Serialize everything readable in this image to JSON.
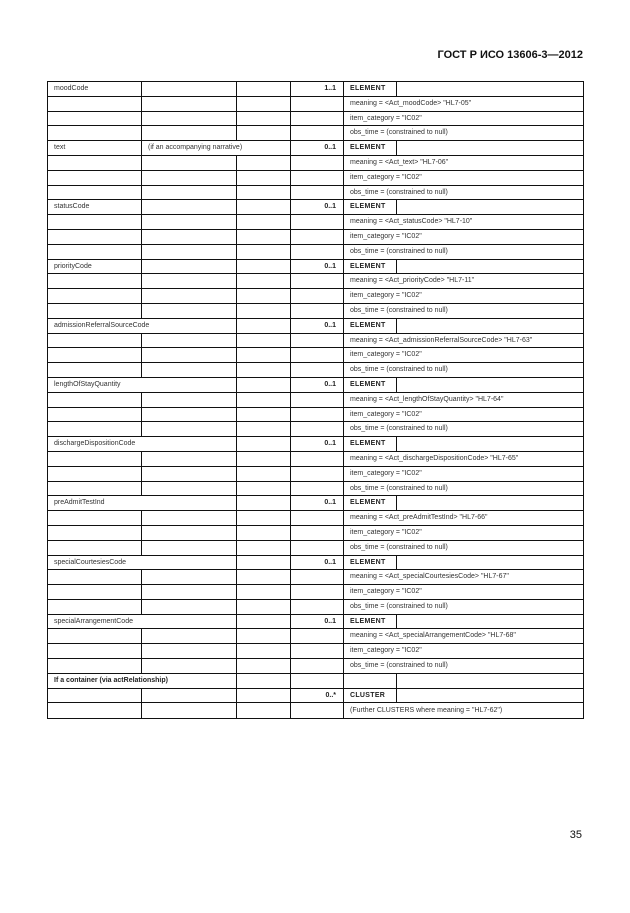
{
  "header": {
    "standard": "ГОСТ Р ИСО 13606-3—2012"
  },
  "page_number": "35",
  "groups": [
    {
      "name": "moodCode",
      "note": "",
      "card": "1..1",
      "type": "ELEMENT",
      "merge": "none",
      "rows": [
        "meaning = <Act_moodCode> \"HL7-05\"",
        "item_category = \"IC02\"",
        "obs_time = (constrained to null)"
      ]
    },
    {
      "name": "text",
      "note": "(if an accompanying narrative)",
      "card": "0..1",
      "type": "ELEMENT",
      "merge": "note",
      "rows": [
        "meaning = <Act_text> \"HL7-06\"",
        "item_category = \"IC02\"",
        "obs_time = (constrained to null)"
      ]
    },
    {
      "name": "statusCode",
      "note": "",
      "card": "0..1",
      "type": "ELEMENT",
      "merge": "none",
      "rows": [
        "meaning = <Act_statusCode> \"HL7-10\"",
        "item_category = \"IC02\"",
        "obs_time = (constrained to null)"
      ]
    },
    {
      "name": "priorityCode",
      "note": "",
      "card": "0..1",
      "type": "ELEMENT",
      "merge": "none",
      "rows": [
        "meaning = <Act_priorityCode> \"HL7-11\"",
        "item_category = \"IC02\"",
        "obs_time = (constrained to null)"
      ]
    },
    {
      "name": "admissionReferralSourceCode",
      "note": "",
      "card": "0..1",
      "type": "ELEMENT",
      "merge": "name",
      "rows": [
        "meaning = <Act_admissionReferralSourceCode> \"HL7-63\"",
        "item_category = \"IC02\"",
        "obs_time = (constrained to null)"
      ]
    },
    {
      "name": "lengthOfStayQuantity",
      "note": "",
      "card": "0..1",
      "type": "ELEMENT",
      "merge": "name",
      "rows": [
        "meaning = <Act_lengthOfStayQuantity> \"HL7-64\"",
        "item_category = \"IC02\"",
        "obs_time = (constrained to null)"
      ]
    },
    {
      "name": "dischargeDispositionCode",
      "note": "",
      "card": "0..1",
      "type": "ELEMENT",
      "merge": "name",
      "rows": [
        "meaning = <Act_dischargeDispositionCode> \"HL7-65\"",
        "item_category = \"IC02\"",
        "obs_time = (constrained to null)"
      ]
    },
    {
      "name": "preAdmitTestInd",
      "note": "",
      "card": "0..1",
      "type": "ELEMENT",
      "merge": "name",
      "rows": [
        "meaning = <Act_preAdmitTestInd> \"HL7-66\"",
        "item_category = \"IC02\"",
        "obs_time = (constrained to null)"
      ]
    },
    {
      "name": "specialCourtesiesCode",
      "note": "",
      "card": "0..1",
      "type": "ELEMENT",
      "merge": "name",
      "rows": [
        "meaning = <Act_specialCourtesiesCode> \"HL7-67\"",
        "item_category = \"IC02\"",
        "obs_time = (constrained to null)"
      ]
    },
    {
      "name": "specialArrangementCode",
      "note": "",
      "card": "0..1",
      "type": "ELEMENT",
      "merge": "name",
      "rows": [
        "meaning = <Act_specialArrangementCode> \"HL7-68\"",
        "item_category = \"IC02\"",
        "obs_time = (constrained to null)"
      ]
    }
  ],
  "container": {
    "heading": "If a container (via actRelationship)",
    "card": "0..*",
    "type": "CLUSTER",
    "further": "(Further CLUSTERS where meaning = \"HL7-62\")"
  }
}
